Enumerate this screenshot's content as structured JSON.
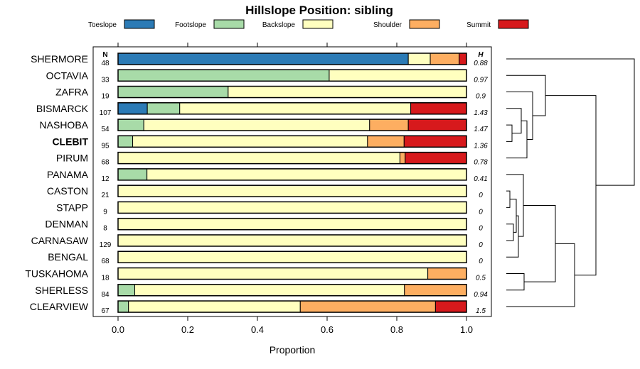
{
  "chart_data": {
    "type": "bar",
    "orientation": "horizontal",
    "stacked": true,
    "title": "Hillslope Position: sibling",
    "xlabel": "Proportion",
    "xlim": [
      0,
      1
    ],
    "xticks": [
      "0.0",
      "0.2",
      "0.4",
      "0.6",
      "0.8",
      "1.0"
    ],
    "n_header": "N",
    "h_header": "H",
    "legend_position": "top",
    "grid": false,
    "categories_legend": [
      {
        "name": "Toeslope",
        "color": "#2c7bb6"
      },
      {
        "name": "Footslope",
        "color": "#a8dba8"
      },
      {
        "name": "Backslope",
        "color": "#ffffbf"
      },
      {
        "name": "Shoulder",
        "color": "#fdae61"
      },
      {
        "name": "Summit",
        "color": "#d7191c"
      }
    ],
    "rows": [
      {
        "label": "SHERMORE",
        "n": "48",
        "h": "0.88",
        "bold": false,
        "values": [
          0.833,
          0.0,
          0.063,
          0.083,
          0.021
        ]
      },
      {
        "label": "OCTAVIA",
        "n": "33",
        "h": "0.97",
        "bold": false,
        "values": [
          0.0,
          0.606,
          0.394,
          0.0,
          0.0
        ]
      },
      {
        "label": "ZAFRA",
        "n": "19",
        "h": "0.9",
        "bold": false,
        "values": [
          0.0,
          0.316,
          0.684,
          0.0,
          0.0
        ]
      },
      {
        "label": "BISMARCK",
        "n": "107",
        "h": "1.43",
        "bold": false,
        "values": [
          0.084,
          0.093,
          0.663,
          0.0,
          0.16
        ]
      },
      {
        "label": "NASHOBA",
        "n": "54",
        "h": "1.47",
        "bold": false,
        "values": [
          0.0,
          0.074,
          0.648,
          0.111,
          0.167
        ]
      },
      {
        "label": "CLEBIT",
        "n": "95",
        "h": "1.36",
        "bold": true,
        "values": [
          0.0,
          0.042,
          0.674,
          0.105,
          0.179
        ]
      },
      {
        "label": "PIRUM",
        "n": "68",
        "h": "0.78",
        "bold": false,
        "values": [
          0.0,
          0.0,
          0.809,
          0.015,
          0.176
        ]
      },
      {
        "label": "PANAMA",
        "n": "12",
        "h": "0.41",
        "bold": false,
        "values": [
          0.0,
          0.083,
          0.917,
          0.0,
          0.0
        ]
      },
      {
        "label": "CASTON",
        "n": "21",
        "h": "0",
        "bold": false,
        "values": [
          0.0,
          0.0,
          1.0,
          0.0,
          0.0
        ]
      },
      {
        "label": "STAPP",
        "n": "9",
        "h": "0",
        "bold": false,
        "values": [
          0.0,
          0.0,
          1.0,
          0.0,
          0.0
        ]
      },
      {
        "label": "DENMAN",
        "n": "8",
        "h": "0",
        "bold": false,
        "values": [
          0.0,
          0.0,
          1.0,
          0.0,
          0.0
        ]
      },
      {
        "label": "CARNASAW",
        "n": "129",
        "h": "0",
        "bold": false,
        "values": [
          0.0,
          0.0,
          1.0,
          0.0,
          0.0
        ]
      },
      {
        "label": "BENGAL",
        "n": "68",
        "h": "0",
        "bold": false,
        "values": [
          0.0,
          0.0,
          1.0,
          0.0,
          0.0
        ]
      },
      {
        "label": "TUSKAHOMA",
        "n": "18",
        "h": "0.5",
        "bold": false,
        "values": [
          0.0,
          0.0,
          0.889,
          0.111,
          0.0
        ]
      },
      {
        "label": "SHERLESS",
        "n": "84",
        "h": "0.94",
        "bold": false,
        "values": [
          0.0,
          0.048,
          0.774,
          0.178,
          0.0
        ]
      },
      {
        "label": "CLEARVIEW",
        "n": "67",
        "h": "1.5",
        "bold": false,
        "values": [
          0.0,
          0.03,
          0.493,
          0.388,
          0.089
        ]
      }
    ]
  }
}
